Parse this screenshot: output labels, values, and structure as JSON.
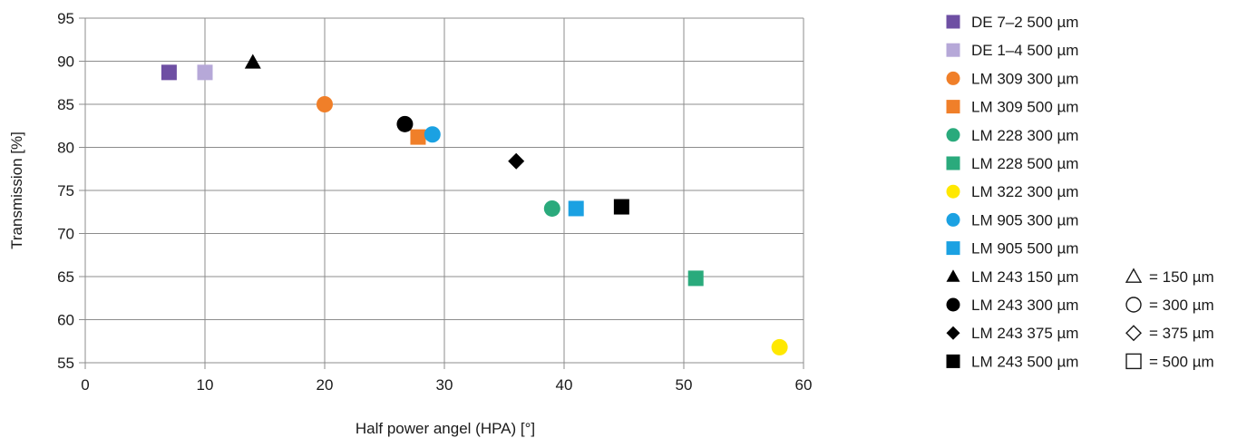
{
  "chart_data": {
    "type": "scatter",
    "title": "",
    "xlabel": "Half power angel (HPA) [°]",
    "ylabel": "Transmission [%]",
    "xlim": [
      0,
      60
    ],
    "ylim": [
      55,
      95
    ],
    "xticks": [
      "0",
      "10",
      "20",
      "30",
      "40",
      "50",
      "60"
    ],
    "yticks": [
      "55",
      "60",
      "65",
      "70",
      "75",
      "80",
      "85",
      "90",
      "95"
    ],
    "grid": true,
    "legend_position": "right",
    "series": [
      {
        "name": "DE 7–2 500 µm",
        "marker": "square",
        "color": "#6e4fa3",
        "x": [
          7
        ],
        "y": [
          88.7
        ]
      },
      {
        "name": "DE 1–4 500 µm",
        "marker": "square",
        "color": "#b6a8d8",
        "x": [
          10
        ],
        "y": [
          88.7
        ]
      },
      {
        "name": "LM 309 300 µm",
        "marker": "circle",
        "color": "#f07f29",
        "x": [
          20
        ],
        "y": [
          85
        ]
      },
      {
        "name": "LM 309 500 µm",
        "marker": "square",
        "color": "#f07f29",
        "x": [
          27.8
        ],
        "y": [
          81.2
        ]
      },
      {
        "name": "LM 228 300 µm",
        "marker": "circle",
        "color": "#2aaa7c",
        "x": [
          39
        ],
        "y": [
          72.9
        ]
      },
      {
        "name": "LM 228 500 µm",
        "marker": "square",
        "color": "#2aaa7c",
        "x": [
          51
        ],
        "y": [
          64.8
        ]
      },
      {
        "name": "LM 322 300 µm",
        "marker": "circle",
        "color": "#ffe800",
        "x": [
          58
        ],
        "y": [
          56.8
        ]
      },
      {
        "name": "LM 905 300 µm",
        "marker": "circle",
        "color": "#1ba1e2",
        "x": [
          29
        ],
        "y": [
          81.5
        ]
      },
      {
        "name": "LM 905 500 µm",
        "marker": "square",
        "color": "#1ba1e2",
        "x": [
          41
        ],
        "y": [
          72.9
        ]
      },
      {
        "name": "LM 243 150 µm",
        "marker": "triangle",
        "color": "#000000",
        "x": [
          14
        ],
        "y": [
          89.9
        ]
      },
      {
        "name": "LM 243 300 µm",
        "marker": "circle",
        "color": "#000000",
        "x": [
          26.7
        ],
        "y": [
          82.7
        ]
      },
      {
        "name": "LM 243 375 µm",
        "marker": "diamond",
        "color": "#000000",
        "x": [
          36
        ],
        "y": [
          78.4
        ]
      },
      {
        "name": "LM 243 500 µm",
        "marker": "square",
        "color": "#000000",
        "x": [
          44.8
        ],
        "y": [
          73.1
        ]
      }
    ],
    "marker_key": [
      {
        "marker": "triangle",
        "label": "= 150 µm"
      },
      {
        "marker": "circle",
        "label": "= 300 µm"
      },
      {
        "marker": "diamond",
        "label": "= 375 µm"
      },
      {
        "marker": "square",
        "label": "= 500 µm"
      }
    ]
  }
}
